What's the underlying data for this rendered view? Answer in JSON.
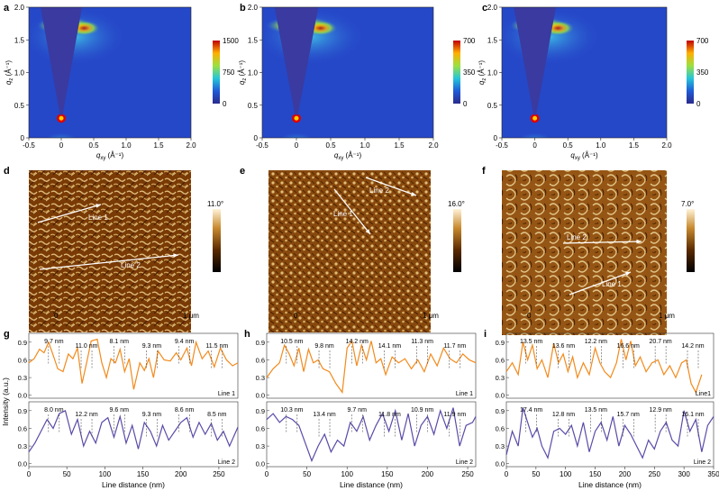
{
  "chart_data": [
    {
      "type": "heatmap",
      "panel": "a",
      "xlabel": "q_xy (Å⁻¹)",
      "ylabel": "q_z (Å⁻¹)",
      "xlim": [
        -0.5,
        2.0
      ],
      "ylim": [
        0,
        2.0
      ],
      "x_ticks": [
        "-0.5",
        "0",
        "0.5",
        "1.0",
        "1.5",
        "2.0"
      ],
      "y_ticks": [
        "0",
        "0.5",
        "1.0",
        "1.5",
        "2.0"
      ],
      "colorbar_ticks": [
        "0",
        "750",
        "1500"
      ],
      "colorscale": "jet"
    },
    {
      "type": "heatmap",
      "panel": "b",
      "xlabel": "q_xy (Å⁻¹)",
      "ylabel": "q_z (Å⁻¹)",
      "xlim": [
        -0.5,
        2.0
      ],
      "ylim": [
        0,
        2.0
      ],
      "x_ticks": [
        "-0.5",
        "0",
        "0.5",
        "1.0",
        "1.5",
        "2.0"
      ],
      "y_ticks": [
        "0",
        "0.5",
        "1.0",
        "1.5",
        "2.0"
      ],
      "colorbar_ticks": [
        "0",
        "350",
        "700"
      ],
      "colorscale": "jet"
    },
    {
      "type": "heatmap",
      "panel": "c",
      "xlabel": "q_xy (Å⁻¹)",
      "ylabel": "q_z (Å⁻¹)",
      "xlim": [
        -0.5,
        2.0
      ],
      "ylim": [
        0,
        2.0
      ],
      "x_ticks": [
        "-0.5",
        "0",
        "0.5",
        "1.0",
        "1.5",
        "2.0"
      ],
      "y_ticks": [
        "0",
        "0.5",
        "1.0",
        "1.5",
        "2.0"
      ],
      "colorbar_ticks": [
        "0",
        "350",
        "700"
      ],
      "colorscale": "jet"
    },
    {
      "type": "line",
      "panel": "g",
      "xlabel": "Line distance (nm)",
      "ylabel": "Intensity (a.u.)",
      "xlim": [
        0,
        275
      ],
      "x_ticks": [
        "0",
        "50",
        "100",
        "150",
        "200",
        "250"
      ],
      "y_ticks": [
        "0.0",
        "0.3",
        "0.6",
        "0.9"
      ],
      "series": [
        {
          "name": "Line 1",
          "color": "#f28a1c",
          "x": [
            0,
            7,
            14,
            20,
            26,
            32,
            38,
            45,
            52,
            58,
            64,
            70,
            76,
            82,
            90,
            96,
            102,
            108,
            114,
            120,
            126,
            132,
            138,
            146,
            152,
            158,
            164,
            170,
            178,
            186,
            194,
            200,
            208,
            214,
            220,
            228,
            236,
            244,
            252,
            260,
            268,
            275
          ],
          "y": [
            0.55,
            0.62,
            0.78,
            0.72,
            0.9,
            0.68,
            0.45,
            0.4,
            0.7,
            0.62,
            0.8,
            0.2,
            0.55,
            0.92,
            0.95,
            0.55,
            0.3,
            0.62,
            0.55,
            0.78,
            0.4,
            0.62,
            0.1,
            0.55,
            0.42,
            0.62,
            0.3,
            0.75,
            0.6,
            0.58,
            0.72,
            0.6,
            0.8,
            0.5,
            0.9,
            0.62,
            0.75,
            0.48,
            0.8,
            0.6,
            0.5,
            0.55
          ]
        },
        {
          "name": "Line 2",
          "color": "#5a4ba8",
          "x": [
            0,
            8,
            16,
            24,
            32,
            40,
            48,
            56,
            64,
            72,
            80,
            88,
            96,
            104,
            112,
            120,
            128,
            136,
            144,
            152,
            160,
            168,
            176,
            184,
            192,
            200,
            208,
            216,
            224,
            232,
            240,
            248,
            256,
            264,
            275
          ],
          "y": [
            0.2,
            0.35,
            0.55,
            0.75,
            0.6,
            0.85,
            0.9,
            0.5,
            0.75,
            0.3,
            0.55,
            0.35,
            0.7,
            0.78,
            0.45,
            0.8,
            0.35,
            0.65,
            0.25,
            0.7,
            0.55,
            0.3,
            0.65,
            0.4,
            0.55,
            0.7,
            0.78,
            0.45,
            0.7,
            0.5,
            0.68,
            0.4,
            0.55,
            0.3,
            0.62
          ]
        }
      ],
      "annotations": {
        "line1": [
          "9.7 nm",
          "11.0 nm",
          "8.1 nm",
          "9.3 nm",
          "9.4 nm",
          "11.5 nm"
        ],
        "line2": [
          "8.0 nm",
          "12.2 nm",
          "9.6 nm",
          "9.3 nm",
          "8.6 nm",
          "8.5 nm"
        ]
      }
    },
    {
      "type": "line",
      "panel": "h",
      "xlabel": "Line distance (nm)",
      "ylabel": "",
      "xlim": [
        0,
        260
      ],
      "x_ticks": [
        "0",
        "50",
        "100",
        "150",
        "200",
        "250"
      ],
      "y_ticks": [
        "0.0",
        "0.3",
        "0.6",
        "0.9"
      ],
      "series": [
        {
          "name": "Line 1",
          "color": "#f28a1c",
          "x": [
            0,
            8,
            16,
            22,
            28,
            34,
            40,
            46,
            52,
            58,
            64,
            70,
            78,
            86,
            94,
            100,
            106,
            112,
            118,
            124,
            130,
            136,
            142,
            148,
            156,
            164,
            172,
            180,
            188,
            196,
            204,
            212,
            220,
            228,
            236,
            244,
            252,
            260
          ],
          "y": [
            0.3,
            0.45,
            0.55,
            0.85,
            0.7,
            0.5,
            0.8,
            0.4,
            0.78,
            0.55,
            0.6,
            0.45,
            0.4,
            0.2,
            0.05,
            0.8,
            0.92,
            0.5,
            0.85,
            0.6,
            0.92,
            0.55,
            0.62,
            0.35,
            0.65,
            0.55,
            0.62,
            0.45,
            0.6,
            0.4,
            0.7,
            0.5,
            0.8,
            0.62,
            0.55,
            0.7,
            0.6,
            0.55
          ]
        },
        {
          "name": "Line 2",
          "color": "#5a4ba8",
          "x": [
            0,
            8,
            16,
            24,
            32,
            40,
            48,
            56,
            64,
            72,
            80,
            88,
            96,
            104,
            112,
            120,
            128,
            136,
            144,
            152,
            160,
            168,
            176,
            184,
            192,
            200,
            208,
            216,
            224,
            232,
            240,
            248,
            256,
            260
          ],
          "y": [
            0.75,
            0.85,
            0.7,
            0.8,
            0.75,
            0.65,
            0.35,
            0.05,
            0.3,
            0.5,
            0.2,
            0.4,
            0.3,
            0.7,
            0.55,
            0.8,
            0.4,
            0.65,
            0.85,
            0.55,
            0.9,
            0.4,
            0.85,
            0.3,
            0.65,
            0.8,
            0.5,
            0.9,
            0.6,
            0.95,
            0.3,
            0.65,
            0.7,
            0.8
          ]
        }
      ],
      "annotations": {
        "line1": [
          "10.5 nm",
          "9.8 nm",
          "14.2 nm",
          "14.1 nm",
          "11.3 nm",
          "11.7 nm"
        ],
        "line2": [
          "10.3 nm",
          "13.4 nm",
          "9.7 nm",
          "11.8 nm",
          "10.9 nm",
          "11.9 nm"
        ]
      }
    },
    {
      "type": "line",
      "panel": "i",
      "xlabel": "Line distance (nm)",
      "ylabel": "",
      "xlim": [
        0,
        350
      ],
      "x_ticks": [
        "0",
        "50",
        "100",
        "150",
        "200",
        "250",
        "300",
        "350"
      ],
      "y_ticks": [
        "0.0",
        "0.3",
        "0.6",
        "0.9"
      ],
      "series": [
        {
          "name": "Line1",
          "color": "#f28a1c",
          "x": [
            0,
            10,
            20,
            28,
            36,
            44,
            52,
            60,
            70,
            80,
            88,
            96,
            104,
            112,
            120,
            130,
            140,
            150,
            158,
            166,
            176,
            186,
            194,
            202,
            210,
            218,
            226,
            236,
            246,
            256,
            266,
            276,
            286,
            296,
            304,
            312,
            320,
            330
          ],
          "y": [
            0.4,
            0.55,
            0.35,
            0.9,
            0.6,
            0.85,
            0.45,
            0.6,
            0.3,
            0.88,
            0.55,
            0.7,
            0.4,
            0.65,
            0.3,
            0.55,
            0.35,
            0.8,
            0.55,
            0.4,
            0.3,
            0.55,
            0.95,
            0.6,
            0.92,
            0.5,
            0.65,
            0.4,
            0.55,
            0.6,
            0.35,
            0.5,
            0.3,
            0.55,
            0.6,
            0.2,
            0.05,
            0.35
          ]
        },
        {
          "name": "Line 2",
          "color": "#5a4ba8",
          "x": [
            0,
            10,
            20,
            28,
            36,
            44,
            52,
            60,
            70,
            80,
            90,
            100,
            110,
            120,
            130,
            140,
            150,
            160,
            170,
            180,
            190,
            200,
            210,
            220,
            230,
            240,
            250,
            260,
            270,
            280,
            290,
            300,
            310,
            320,
            330,
            340,
            350
          ],
          "y": [
            0.15,
            0.55,
            0.3,
            0.95,
            0.7,
            0.45,
            0.6,
            0.3,
            0.1,
            0.55,
            0.6,
            0.5,
            0.65,
            0.3,
            0.7,
            0.2,
            0.55,
            0.7,
            0.4,
            0.8,
            0.3,
            0.65,
            0.5,
            0.3,
            0.1,
            0.4,
            0.25,
            0.55,
            0.7,
            0.4,
            0.3,
            0.9,
            0.55,
            0.75,
            0.2,
            0.65,
            0.8
          ]
        }
      ],
      "annotations": {
        "line1": [
          "13.5 nm",
          "13.6 nm",
          "12.2 nm",
          "16.6 nm",
          "20.7 nm",
          "14.2 nm"
        ],
        "line2": [
          "17.4 nm",
          "12.8 nm",
          "13.5 nm",
          "15.7 nm",
          "12.9 nm",
          "16.1 nm"
        ]
      }
    }
  ],
  "panels": {
    "a": {
      "letter": "a"
    },
    "b": {
      "letter": "b"
    },
    "c": {
      "letter": "c"
    },
    "d": {
      "letter": "d",
      "scale_max": "11.0°",
      "line1": "Line 1",
      "line2": "Line 2",
      "axis_start": "0",
      "axis_end": "1 μm"
    },
    "e": {
      "letter": "e",
      "scale_max": "16.0°",
      "line1": "Line 1",
      "line2": "Line 2",
      "axis_start": "0",
      "axis_end": "1 μm"
    },
    "f": {
      "letter": "f",
      "scale_max": "7.0°",
      "line1": "Line 1",
      "line2": "Line 2",
      "axis_start": "0",
      "axis_end": "1 μm"
    },
    "g": {
      "letter": "g"
    },
    "h": {
      "letter": "h"
    },
    "i": {
      "letter": "i"
    }
  },
  "colors": {
    "line1": "#f28a1c",
    "line2": "#5a4ba8",
    "afm_dark": "#3a1a00",
    "afm_light": "#f4dfa0"
  }
}
